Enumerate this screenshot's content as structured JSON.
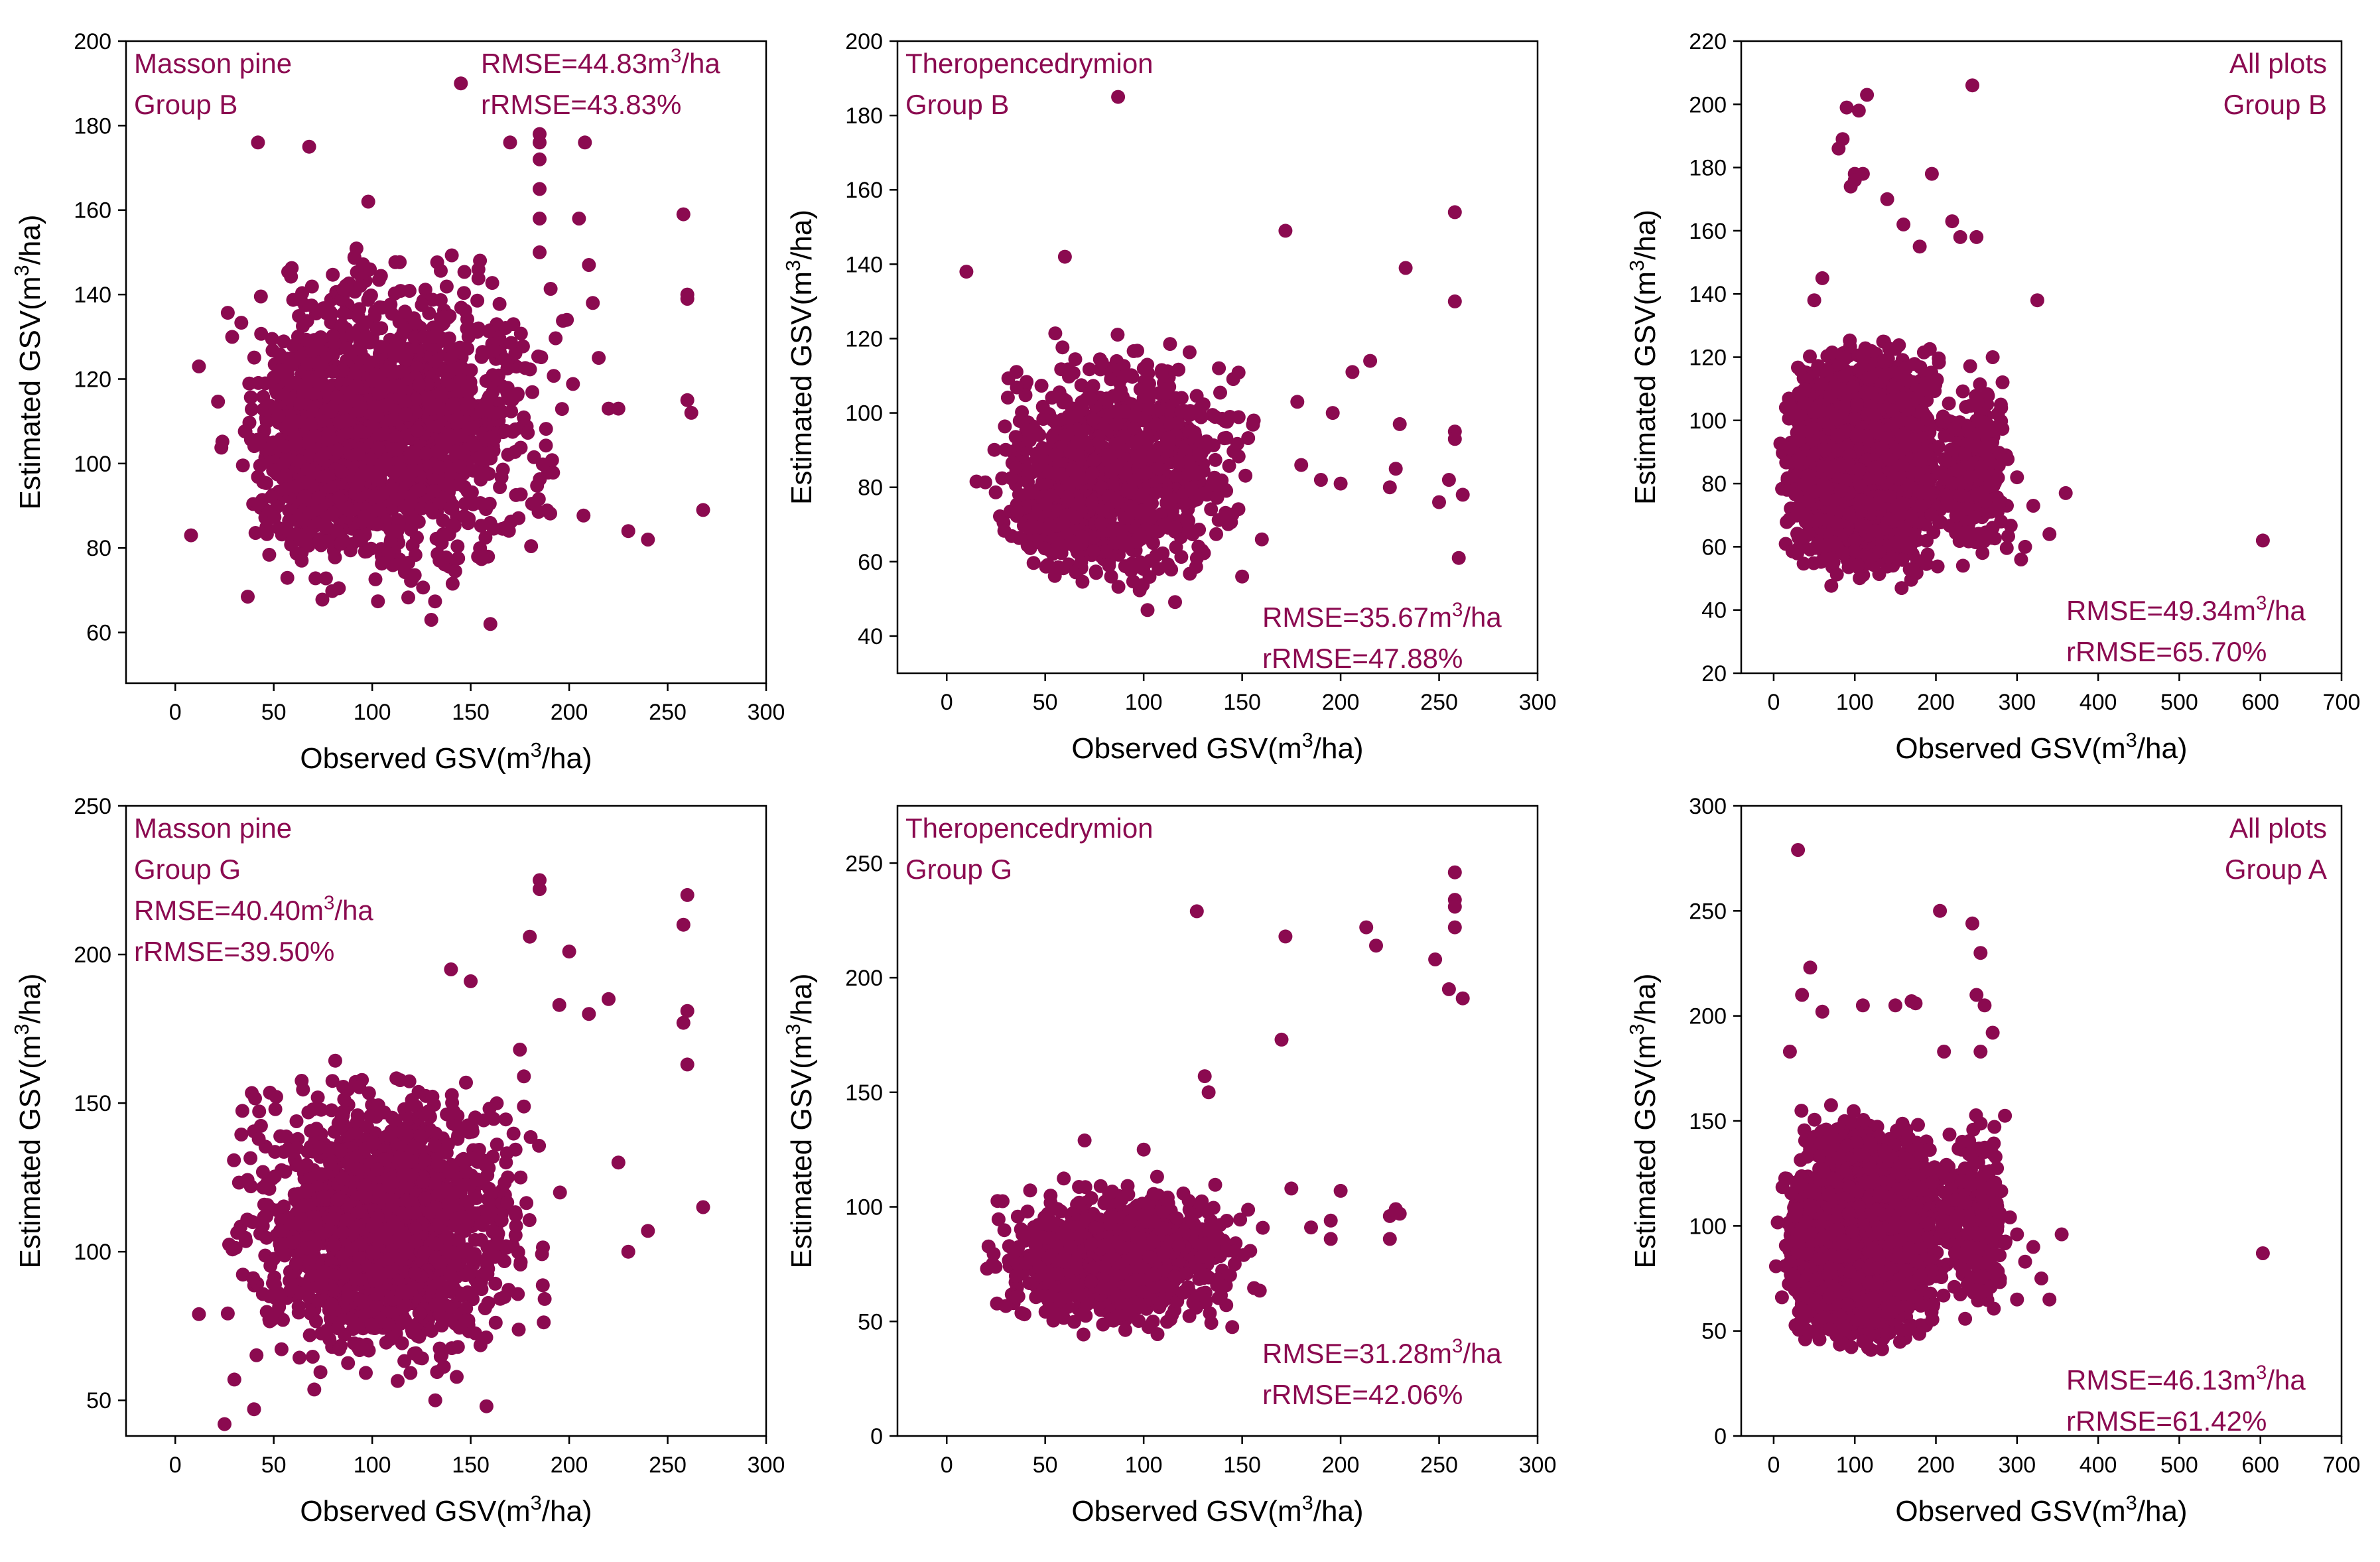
{
  "figure": {
    "point_color": "#8b0a50",
    "annotation_color": "#8b0a50",
    "axis_color": "#000000"
  },
  "chart_data": [
    {
      "id": "p1",
      "type": "scatter",
      "title_lines": [
        "Masson pine",
        "Group B"
      ],
      "stats": [
        "RMSE=44.83m³/ha",
        "rRMSE=43.83%"
      ],
      "xlabel": "Observed GSV(m³/ha)",
      "ylabel": "Estimated GSV(m³/ha)",
      "xlim": [
        -25,
        300
      ],
      "ylim": [
        48,
        200
      ],
      "xticks": [
        0,
        50,
        100,
        150,
        200,
        250,
        300
      ],
      "yticks": [
        60,
        80,
        100,
        120,
        140,
        160,
        180,
        200
      ],
      "cloud": [
        {
          "x": [
            12,
            210
          ],
          "y": [
            62,
            158
          ],
          "n": 1400
        },
        {
          "x": [
            30,
            110
          ],
          "y": [
            70,
            135
          ],
          "n": 400
        }
      ],
      "points": [
        [
          12,
          123
        ],
        [
          42,
          176
        ],
        [
          68,
          175
        ],
        [
          98,
          162
        ],
        [
          145,
          190
        ],
        [
          160,
          62
        ],
        [
          170,
          176
        ],
        [
          185,
          178
        ],
        [
          185,
          176
        ],
        [
          185,
          172
        ],
        [
          185,
          165
        ],
        [
          185,
          158
        ],
        [
          185,
          150
        ],
        [
          205,
          158
        ],
        [
          208,
          176
        ],
        [
          210,
          147
        ],
        [
          212,
          138
        ],
        [
          215,
          125
        ],
        [
          220,
          113
        ],
        [
          225,
          113
        ],
        [
          230,
          84
        ],
        [
          240,
          82
        ],
        [
          258,
          159
        ],
        [
          260,
          140
        ],
        [
          260,
          139
        ],
        [
          260,
          115
        ],
        [
          262,
          112
        ],
        [
          268,
          89
        ],
        [
          8,
          83
        ],
        [
          130,
          63
        ]
      ]
    },
    {
      "id": "p2",
      "type": "scatter",
      "title_lines": [
        "Theropencedrymion",
        "Group B"
      ],
      "stats": [
        "RMSE=35.67m³/ha",
        "rRMSE=47.88%"
      ],
      "xlabel": "Observed GSV(m³/ha)",
      "ylabel": "Estimated GSV(m³/ha)",
      "xlim": [
        -25,
        300
      ],
      "ylim": [
        30,
        200
      ],
      "xticks": [
        0,
        50,
        100,
        150,
        200,
        250,
        300
      ],
      "yticks": [
        40,
        60,
        80,
        100,
        120,
        140,
        160,
        180,
        200
      ],
      "cloud": [
        {
          "x": [
            10,
            170
          ],
          "y": [
            44,
            125
          ],
          "n": 900
        },
        {
          "x": [
            25,
            100
          ],
          "y": [
            50,
            100
          ],
          "n": 350
        }
      ],
      "points": [
        [
          10,
          138
        ],
        [
          60,
          142
        ],
        [
          87,
          185
        ],
        [
          172,
          149
        ],
        [
          178,
          103
        ],
        [
          196,
          100
        ],
        [
          200,
          81
        ],
        [
          206,
          111
        ],
        [
          215,
          114
        ],
        [
          225,
          80
        ],
        [
          228,
          85
        ],
        [
          230,
          97
        ],
        [
          233,
          139
        ],
        [
          250,
          76
        ],
        [
          255,
          82
        ],
        [
          258,
          154
        ],
        [
          258,
          130
        ],
        [
          258,
          95
        ],
        [
          258,
          93
        ],
        [
          260,
          61
        ],
        [
          262,
          78
        ],
        [
          150,
          56
        ],
        [
          160,
          66
        ],
        [
          180,
          86
        ],
        [
          190,
          82
        ]
      ]
    },
    {
      "id": "p3",
      "type": "scatter",
      "title_lines": [
        "All plots",
        "Group B"
      ],
      "stats": [
        "RMSE=49.34m³/ha",
        "rRMSE=65.70%"
      ],
      "xlabel": "Observed GSV(m³/ha)",
      "ylabel": "Estimated GSV(m³/ha)",
      "xlim": [
        -40,
        700
      ],
      "ylim": [
        20,
        220
      ],
      "xticks": [
        0,
        100,
        200,
        300,
        400,
        500,
        600,
        700
      ],
      "yticks": [
        20,
        40,
        60,
        80,
        100,
        120,
        140,
        160,
        180,
        200,
        220
      ],
      "cloud": [
        {
          "x": [
            0,
            230
          ],
          "y": [
            45,
            130
          ],
          "n": 3200
        },
        {
          "x": [
            0,
            200
          ],
          "y": [
            50,
            120
          ],
          "n": 1600
        },
        {
          "x": [
            200,
            300
          ],
          "y": [
            48,
            120
          ],
          "n": 250
        }
      ],
      "points": [
        [
          100,
          178
        ],
        [
          95,
          174
        ],
        [
          100,
          176
        ],
        [
          110,
          178
        ],
        [
          115,
          203
        ],
        [
          90,
          199
        ],
        [
          105,
          198
        ],
        [
          85,
          189
        ],
        [
          80,
          186
        ],
        [
          245,
          206
        ],
        [
          195,
          178
        ],
        [
          220,
          163
        ],
        [
          230,
          158
        ],
        [
          250,
          158
        ],
        [
          180,
          155
        ],
        [
          60,
          145
        ],
        [
          50,
          138
        ],
        [
          325,
          138
        ],
        [
          300,
          82
        ],
        [
          320,
          73
        ],
        [
          310,
          60
        ],
        [
          340,
          64
        ],
        [
          360,
          77
        ],
        [
          305,
          56
        ],
        [
          603,
          62
        ],
        [
          140,
          170
        ],
        [
          160,
          162
        ],
        [
          270,
          120
        ],
        [
          280,
          105
        ]
      ]
    },
    {
      "id": "p4",
      "type": "scatter",
      "title_lines": [
        "Masson pine",
        "Group G"
      ],
      "stats": [
        "RMSE=40.40m³/ha",
        "rRMSE=39.50%"
      ],
      "xlabel": "Observed GSV(m³/ha)",
      "ylabel": "Estimated GSV(m³/ha)",
      "xlim": [
        -25,
        300
      ],
      "ylim": [
        38,
        250
      ],
      "xticks": [
        0,
        50,
        100,
        150,
        200,
        250,
        300
      ],
      "yticks": [
        50,
        100,
        150,
        200,
        250
      ],
      "cloud": [
        {
          "x": [
            12,
            200
          ],
          "y": [
            48,
            170
          ],
          "n": 1400
        },
        {
          "x": [
            30,
            160
          ],
          "y": [
            65,
            145
          ],
          "n": 400
        }
      ],
      "points": [
        [
          12,
          79
        ],
        [
          25,
          42
        ],
        [
          30,
          57
        ],
        [
          40,
          47
        ],
        [
          185,
          225
        ],
        [
          185,
          222
        ],
        [
          180,
          206
        ],
        [
          200,
          201
        ],
        [
          195,
          183
        ],
        [
          210,
          180
        ],
        [
          220,
          185
        ],
        [
          258,
          210
        ],
        [
          260,
          220
        ],
        [
          260,
          181
        ],
        [
          258,
          177
        ],
        [
          260,
          163
        ],
        [
          268,
          115
        ],
        [
          225,
          130
        ],
        [
          230,
          100
        ],
        [
          240,
          107
        ],
        [
          158,
          48
        ],
        [
          132,
          50
        ],
        [
          140,
          195
        ],
        [
          150,
          191
        ],
        [
          175,
          168
        ]
      ]
    },
    {
      "id": "p5",
      "type": "scatter",
      "title_lines": [
        "Theropencedrymion",
        "Group G"
      ],
      "stats": [
        "RMSE=31.28m³/ha",
        "rRMSE=42.06%"
      ],
      "xlabel": "Observed GSV(m³/ha)",
      "ylabel": "Estimated GSV(m³/ha)",
      "xlim": [
        -25,
        300
      ],
      "ylim": [
        0,
        275
      ],
      "xticks": [
        0,
        50,
        100,
        150,
        200,
        250,
        300
      ],
      "yticks": [
        0,
        50,
        100,
        150,
        200,
        250
      ],
      "cloud": [
        {
          "x": [
            10,
            165
          ],
          "y": [
            40,
            118
          ],
          "n": 900
        },
        {
          "x": [
            30,
            110
          ],
          "y": [
            50,
            100
          ],
          "n": 350
        }
      ],
      "points": [
        [
          127,
          229
        ],
        [
          131,
          157
        ],
        [
          133,
          150
        ],
        [
          170,
          173
        ],
        [
          172,
          218
        ],
        [
          213,
          222
        ],
        [
          218,
          214
        ],
        [
          248,
          208
        ],
        [
          255,
          195
        ],
        [
          258,
          246
        ],
        [
          258,
          234
        ],
        [
          258,
          231
        ],
        [
          258,
          222
        ],
        [
          262,
          191
        ],
        [
          225,
          96
        ],
        [
          228,
          99
        ],
        [
          230,
          97
        ],
        [
          225,
          86
        ],
        [
          195,
          86
        ],
        [
          195,
          94
        ],
        [
          185,
          91
        ],
        [
          175,
          108
        ],
        [
          200,
          107
        ],
        [
          70,
          129
        ],
        [
          100,
          125
        ]
      ]
    },
    {
      "id": "p6",
      "type": "scatter",
      "title_lines": [
        "All plots",
        "Group A"
      ],
      "stats": [
        "RMSE=46.13m³/ha",
        "rRMSE=61.42%"
      ],
      "xlabel": "Observed GSV(m³/ha)",
      "ylabel": "Estimated GSV(m³/ha)",
      "xlim": [
        -40,
        700
      ],
      "ylim": [
        0,
        300
      ],
      "xticks": [
        0,
        100,
        200,
        300,
        400,
        500,
        600,
        700
      ],
      "yticks": [
        0,
        50,
        100,
        150,
        200,
        250,
        300
      ],
      "cloud": [
        {
          "x": [
            0,
            230
          ],
          "y": [
            35,
            160
          ],
          "n": 3200
        },
        {
          "x": [
            0,
            200
          ],
          "y": [
            40,
            140
          ],
          "n": 1600
        },
        {
          "x": [
            200,
            300
          ],
          "y": [
            45,
            160
          ],
          "n": 250
        }
      ],
      "points": [
        [
          30,
          279
        ],
        [
          45,
          223
        ],
        [
          35,
          210
        ],
        [
          205,
          250
        ],
        [
          245,
          244
        ],
        [
          255,
          230
        ],
        [
          250,
          210
        ],
        [
          260,
          205
        ],
        [
          270,
          192
        ],
        [
          255,
          183
        ],
        [
          210,
          183
        ],
        [
          150,
          205
        ],
        [
          170,
          207
        ],
        [
          175,
          206
        ],
        [
          110,
          205
        ],
        [
          60,
          202
        ],
        [
          300,
          96
        ],
        [
          310,
          83
        ],
        [
          320,
          90
        ],
        [
          330,
          75
        ],
        [
          340,
          65
        ],
        [
          355,
          96
        ],
        [
          300,
          65
        ],
        [
          603,
          87
        ],
        [
          20,
          183
        ]
      ]
    }
  ]
}
